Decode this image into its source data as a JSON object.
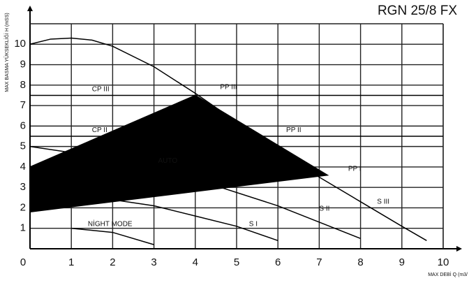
{
  "chart_data": {
    "type": "line",
    "title": "RGN 25/8 FX",
    "y_label": "MAX BASMA YÜKSEKLİĞİ H (mSS)",
    "x_label": "MAX DEBİ  Q (m3/",
    "xlim": [
      0,
      10
    ],
    "ylim": [
      0,
      11
    ],
    "xticks": [
      0,
      1,
      2,
      3,
      4,
      5,
      6,
      7,
      8,
      9,
      10
    ],
    "yticks": [
      1,
      2,
      3,
      4,
      5,
      6,
      7,
      8,
      9,
      10
    ],
    "grid": true,
    "series": [
      {
        "name": "AUTO",
        "kind": "area",
        "color": "#000000",
        "x": [
          0,
          4,
          7.2,
          0
        ],
        "values": [
          4,
          7.5,
          3.6,
          1.8
        ]
      },
      {
        "name": "S III",
        "kind": "line",
        "color": "#000000",
        "x": [
          0,
          0.5,
          1,
          1.5,
          2,
          3,
          4,
          5,
          6,
          7,
          8,
          9,
          9.6
        ],
        "values": [
          10,
          10.25,
          10.3,
          10.2,
          9.9,
          8.9,
          7.6,
          6.2,
          4.8,
          3.5,
          2.3,
          1.1,
          0.4
        ]
      },
      {
        "name": "S II",
        "kind": "line",
        "color": "#000000",
        "x": [
          0,
          2,
          4,
          6,
          7,
          8
        ],
        "values": [
          5,
          4.4,
          3.4,
          2.1,
          1.3,
          0.5
        ]
      },
      {
        "name": "S I",
        "kind": "line",
        "color": "#000000",
        "x": [
          0,
          2,
          3,
          4,
          5,
          6
        ],
        "values": [
          2.7,
          2.4,
          2.1,
          1.6,
          1.1,
          0.4
        ]
      },
      {
        "name": "NİGHT MODE",
        "kind": "line",
        "color": "#000000",
        "x": [
          1,
          2,
          3
        ],
        "values": [
          1,
          0.8,
          0.2
        ]
      },
      {
        "name": "CP III",
        "kind": "line",
        "color": "#000000",
        "x": [
          0,
          10
        ],
        "values": [
          7.5,
          7.5
        ]
      },
      {
        "name": "CP II",
        "kind": "line",
        "color": "#000000",
        "x": [
          0,
          10
        ],
        "values": [
          5.5,
          5.5
        ]
      }
    ],
    "annotations": [
      {
        "text": "CP III",
        "x": 1.5,
        "y": 7.8
      },
      {
        "text": "CP II",
        "x": 1.5,
        "y": 5.8
      },
      {
        "text": "AUTO",
        "x": 3.1,
        "y": 4.3
      },
      {
        "text": "PP III",
        "x": 4.6,
        "y": 7.9
      },
      {
        "text": "PP II",
        "x": 6.2,
        "y": 5.8
      },
      {
        "text": "PP I",
        "x": 7.7,
        "y": 3.9
      },
      {
        "text": "S III",
        "x": 8.4,
        "y": 2.3
      },
      {
        "text": "S II",
        "x": 7.0,
        "y": 1.95
      },
      {
        "text": "S I",
        "x": 5.3,
        "y": 1.2
      },
      {
        "text": "NİGHT MODE",
        "x": 1.4,
        "y": 1.2
      }
    ]
  }
}
